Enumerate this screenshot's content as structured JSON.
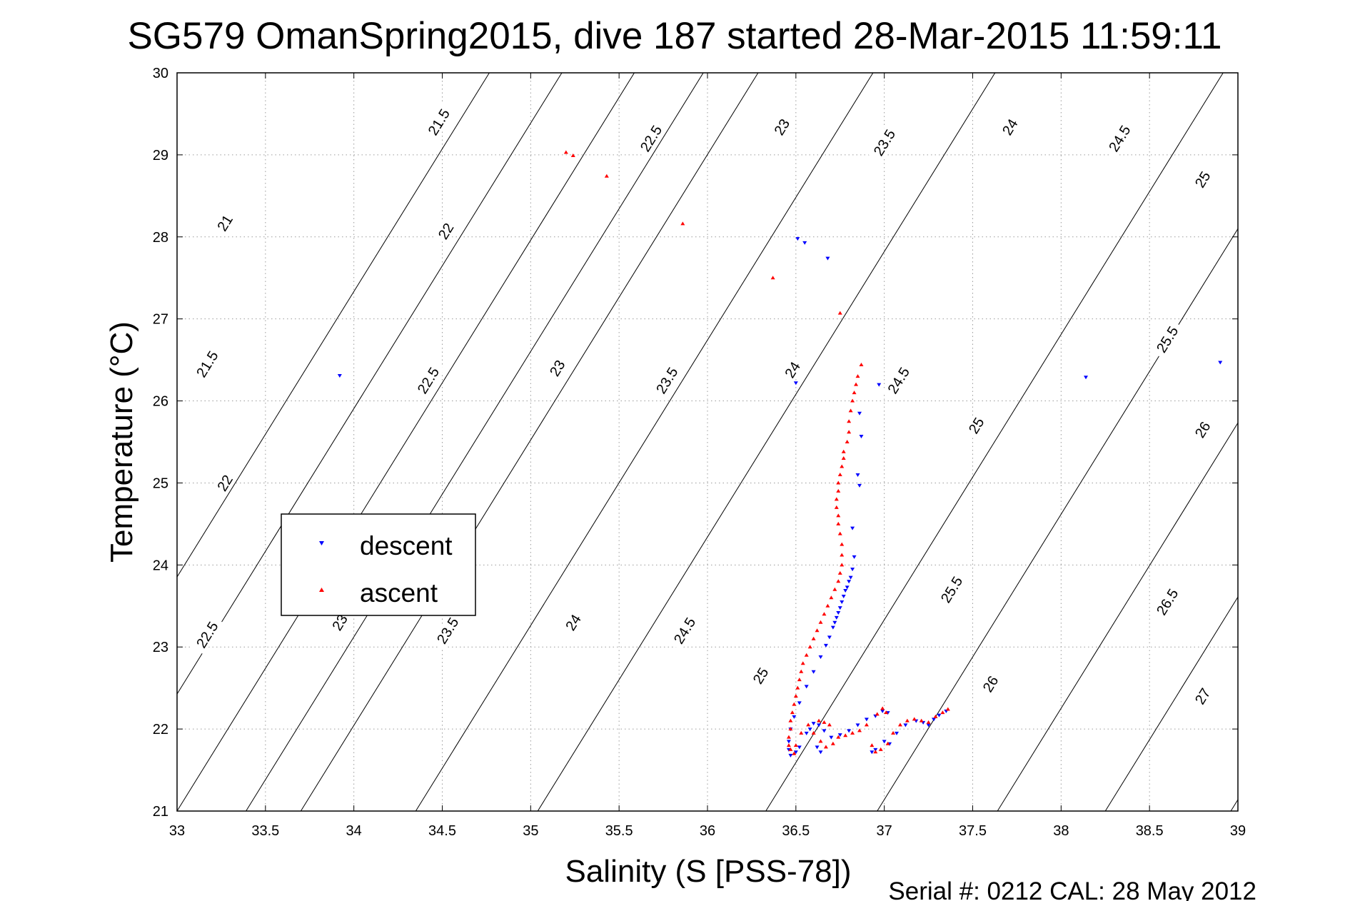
{
  "chart_data": {
    "type": "scatter",
    "title": "SG579 OmanSpring2015, dive 187 started 28-Mar-2015 11:59:11",
    "xlabel": "Salinity (S [PSS-78])",
    "ylabel": "Temperature (°C)",
    "xlim": [
      33,
      39
    ],
    "ylim": [
      21,
      30
    ],
    "xticks": [
      "33",
      "33.5",
      "34",
      "34.5",
      "35",
      "35.5",
      "36",
      "36.5",
      "37",
      "37.5",
      "38",
      "38.5",
      "39"
    ],
    "yticks": [
      "21",
      "22",
      "23",
      "24",
      "25",
      "26",
      "27",
      "28",
      "29",
      "30"
    ],
    "grid": true,
    "legend_position": "left",
    "footer": "Serial #: 0212  CAL: 28 May 2012",
    "colors": {
      "descent": "#0000ff",
      "ascent": "#ff0000",
      "contour": "#000000",
      "grid": "#9a9a9a"
    },
    "legend": [
      {
        "label": "descent",
        "marker": "triangle-down",
        "color": "#0000ff"
      },
      {
        "label": "ascent",
        "marker": "triangle-up",
        "color": "#ff0000"
      }
    ],
    "isopycnal_contours": {
      "slope_degC_per_psu": 3.48,
      "lines": [
        {
          "value": 21.5,
          "s_at_t21": 32.18
        },
        {
          "value": 22,
          "s_at_t21": 32.59
        },
        {
          "value": 22.5,
          "s_at_t21": 33.0
        },
        {
          "value": 23,
          "s_at_t21": 33.39
        },
        {
          "value": 23.5,
          "s_at_t21": 33.7
        },
        {
          "value": 24,
          "s_at_t21": 34.35
        },
        {
          "value": 24.5,
          "s_at_t21": 35.04
        },
        {
          "value": 25,
          "s_at_t21": 36.33
        },
        {
          "value": 25.5,
          "s_at_t21": 36.96
        },
        {
          "value": 26,
          "s_at_t21": 37.64
        },
        {
          "value": 26.5,
          "s_at_t21": 38.25
        },
        {
          "value": 27,
          "s_at_t21": 38.96
        }
      ],
      "labels": [
        {
          "text": "21.5",
          "s": 34.48,
          "t": 29.4
        },
        {
          "text": "22.5",
          "s": 35.68,
          "t": 29.2
        },
        {
          "text": "23",
          "s": 36.42,
          "t": 29.34
        },
        {
          "text": "23.5",
          "s": 37.0,
          "t": 29.15
        },
        {
          "text": "24",
          "s": 37.71,
          "t": 29.34
        },
        {
          "text": "24.5",
          "s": 38.33,
          "t": 29.2
        },
        {
          "text": "25",
          "s": 38.8,
          "t": 28.7
        },
        {
          "text": "21",
          "s": 33.27,
          "t": 28.17
        },
        {
          "text": "22",
          "s": 34.52,
          "t": 28.07
        },
        {
          "text": "21.5",
          "s": 33.17,
          "t": 26.45
        },
        {
          "text": "22.5",
          "s": 34.42,
          "t": 26.25
        },
        {
          "text": "23",
          "s": 35.15,
          "t": 26.4
        },
        {
          "text": "23.5",
          "s": 35.77,
          "t": 26.25
        },
        {
          "text": "24",
          "s": 36.48,
          "t": 26.38
        },
        {
          "text": "24.5",
          "s": 37.08,
          "t": 26.25
        },
        {
          "text": "25",
          "s": 37.52,
          "t": 25.7
        },
        {
          "text": "25.5",
          "s": 38.6,
          "t": 26.75
        },
        {
          "text": "26",
          "s": 38.8,
          "t": 25.65
        },
        {
          "text": "22",
          "s": 33.27,
          "t": 25.0
        },
        {
          "text": "22.5",
          "s": 33.17,
          "t": 23.15
        },
        {
          "text": "23",
          "s": 33.92,
          "t": 23.3
        },
        {
          "text": "23.5",
          "s": 34.53,
          "t": 23.2
        },
        {
          "text": "24",
          "s": 35.24,
          "t": 23.3
        },
        {
          "text": "24.5",
          "s": 35.87,
          "t": 23.2
        },
        {
          "text": "25",
          "s": 36.3,
          "t": 22.65
        },
        {
          "text": "25.5",
          "s": 37.38,
          "t": 23.7
        },
        {
          "text": "26",
          "s": 37.6,
          "t": 22.55
        },
        {
          "text": "26.5",
          "s": 38.6,
          "t": 23.55
        },
        {
          "text": "27",
          "s": 38.8,
          "t": 22.4
        }
      ]
    },
    "series": [
      {
        "name": "descent",
        "marker": "triangle-down",
        "points": [
          [
            33.92,
            26.31
          ],
          [
            36.51,
            27.98
          ],
          [
            36.55,
            27.93
          ],
          [
            36.68,
            27.74
          ],
          [
            36.5,
            26.22
          ],
          [
            36.97,
            26.2
          ],
          [
            36.86,
            25.85
          ],
          [
            36.87,
            25.57
          ],
          [
            36.86,
            24.97
          ],
          [
            36.85,
            25.1
          ],
          [
            36.82,
            24.45
          ],
          [
            36.83,
            24.1
          ],
          [
            36.82,
            23.95
          ],
          [
            36.81,
            23.85
          ],
          [
            36.8,
            23.8
          ],
          [
            36.79,
            23.73
          ],
          [
            36.78,
            23.69
          ],
          [
            36.77,
            23.62
          ],
          [
            36.76,
            23.55
          ],
          [
            36.75,
            23.48
          ],
          [
            36.74,
            23.42
          ],
          [
            36.73,
            23.36
          ],
          [
            36.72,
            23.3
          ],
          [
            36.71,
            23.24
          ],
          [
            36.69,
            23.12
          ],
          [
            36.67,
            23.02
          ],
          [
            36.64,
            22.88
          ],
          [
            36.6,
            22.7
          ],
          [
            36.56,
            22.52
          ],
          [
            36.52,
            22.32
          ],
          [
            36.49,
            22.15
          ],
          [
            36.47,
            22.0
          ],
          [
            36.46,
            21.85
          ],
          [
            36.46,
            21.75
          ],
          [
            36.47,
            21.68
          ],
          [
            36.5,
            21.72
          ],
          [
            36.52,
            21.78
          ],
          [
            36.56,
            21.95
          ],
          [
            36.6,
            22.07
          ],
          [
            36.63,
            22.05
          ],
          [
            36.66,
            21.98
          ],
          [
            36.7,
            21.9
          ],
          [
            36.75,
            21.93
          ],
          [
            36.8,
            21.98
          ],
          [
            36.85,
            22.05
          ],
          [
            36.9,
            22.12
          ],
          [
            36.95,
            22.16
          ],
          [
            36.99,
            22.22
          ],
          [
            37.02,
            22.2
          ],
          [
            37.0,
            21.85
          ],
          [
            37.03,
            21.82
          ],
          [
            37.07,
            21.95
          ],
          [
            37.12,
            22.05
          ],
          [
            37.18,
            22.1
          ],
          [
            37.22,
            22.08
          ],
          [
            37.25,
            22.05
          ],
          [
            37.28,
            22.12
          ],
          [
            37.31,
            22.17
          ],
          [
            37.35,
            22.22
          ],
          [
            38.9,
            26.47
          ],
          [
            38.14,
            26.29
          ],
          [
            36.58,
            22.0
          ],
          [
            36.62,
            21.78
          ],
          [
            36.64,
            21.72
          ],
          [
            36.95,
            21.75
          ],
          [
            36.93,
            21.72
          ]
        ]
      },
      {
        "name": "ascent",
        "marker": "triangle-up",
        "points": [
          [
            35.2,
            29.03
          ],
          [
            35.24,
            28.99
          ],
          [
            35.43,
            28.74
          ],
          [
            35.86,
            28.16
          ],
          [
            36.37,
            27.5
          ],
          [
            36.75,
            27.07
          ],
          [
            36.87,
            26.44
          ],
          [
            36.85,
            26.3
          ],
          [
            36.84,
            26.2
          ],
          [
            36.83,
            26.1
          ],
          [
            36.82,
            26.0
          ],
          [
            36.81,
            25.88
          ],
          [
            36.8,
            25.75
          ],
          [
            36.8,
            25.62
          ],
          [
            36.79,
            25.5
          ],
          [
            36.77,
            25.38
          ],
          [
            36.77,
            25.3
          ],
          [
            36.76,
            25.2
          ],
          [
            36.75,
            25.1
          ],
          [
            36.74,
            25.0
          ],
          [
            36.74,
            24.9
          ],
          [
            36.73,
            24.8
          ],
          [
            36.73,
            24.7
          ],
          [
            36.74,
            24.6
          ],
          [
            36.74,
            24.5
          ],
          [
            36.75,
            24.38
          ],
          [
            36.76,
            24.25
          ],
          [
            36.76,
            24.12
          ],
          [
            36.76,
            24.0
          ],
          [
            36.75,
            23.9
          ],
          [
            36.74,
            23.8
          ],
          [
            36.72,
            23.7
          ],
          [
            36.7,
            23.6
          ],
          [
            36.68,
            23.5
          ],
          [
            36.66,
            23.4
          ],
          [
            36.64,
            23.3
          ],
          [
            36.62,
            23.2
          ],
          [
            36.6,
            23.1
          ],
          [
            36.58,
            23.0
          ],
          [
            36.56,
            22.9
          ],
          [
            36.54,
            22.8
          ],
          [
            36.53,
            22.7
          ],
          [
            36.52,
            22.6
          ],
          [
            36.51,
            22.5
          ],
          [
            36.5,
            22.4
          ],
          [
            36.49,
            22.3
          ],
          [
            36.48,
            22.2
          ],
          [
            36.47,
            22.1
          ],
          [
            36.47,
            22.0
          ],
          [
            36.46,
            21.9
          ],
          [
            36.46,
            21.8
          ],
          [
            36.47,
            21.75
          ],
          [
            36.49,
            21.7
          ],
          [
            36.5,
            21.8
          ],
          [
            36.53,
            21.95
          ],
          [
            36.57,
            22.05
          ],
          [
            36.6,
            21.95
          ],
          [
            36.64,
            21.85
          ],
          [
            36.67,
            21.78
          ],
          [
            36.71,
            21.82
          ],
          [
            36.74,
            21.9
          ],
          [
            36.78,
            21.92
          ],
          [
            36.82,
            21.95
          ],
          [
            36.86,
            21.98
          ],
          [
            36.9,
            22.05
          ],
          [
            36.93,
            21.8
          ],
          [
            36.95,
            21.72
          ],
          [
            36.98,
            21.75
          ],
          [
            37.02,
            21.82
          ],
          [
            37.05,
            21.95
          ],
          [
            37.09,
            22.05
          ],
          [
            37.13,
            22.1
          ],
          [
            37.17,
            22.12
          ],
          [
            37.21,
            22.1
          ],
          [
            37.25,
            22.08
          ],
          [
            37.29,
            22.15
          ],
          [
            37.33,
            22.2
          ],
          [
            37.36,
            22.24
          ],
          [
            36.96,
            22.18
          ],
          [
            36.99,
            22.25
          ],
          [
            37.01,
            22.2
          ],
          [
            36.69,
            22.05
          ],
          [
            36.66,
            22.08
          ],
          [
            36.63,
            22.1
          ]
        ]
      }
    ]
  }
}
